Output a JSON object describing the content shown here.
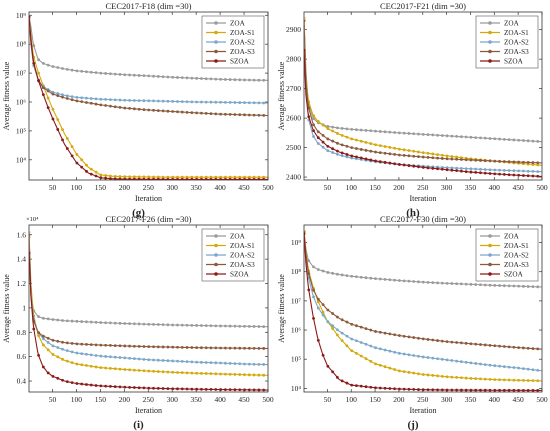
{
  "colors": {
    "ZOA": "#9a9a9a",
    "ZOA-S1": "#d4a90c",
    "ZOA-S2": "#7ca7c9",
    "ZOA-S3": "#8b5a3c",
    "SZOA": "#8b1a1a"
  },
  "chart_data": [
    {
      "type": "line",
      "title": "CEC2017-F18 (dim =30)",
      "xlabel": "Iteration",
      "ylabel": "Average fitness value",
      "panel_label": "(g)",
      "yscale": "log",
      "xlim": [
        1,
        500
      ],
      "ylim": [
        2000.0,
        1300000000.0
      ],
      "xticks": [
        50,
        100,
        150,
        200,
        250,
        300,
        350,
        400,
        450,
        500
      ],
      "yticks": [
        {
          "v": 10000.0,
          "label": "10⁴"
        },
        {
          "v": 100000.0,
          "label": "10⁵"
        },
        {
          "v": 1000000.0,
          "label": "10⁶"
        },
        {
          "v": 10000000.0,
          "label": "10⁷"
        },
        {
          "v": 100000000.0,
          "label": "10⁸"
        },
        {
          "v": 1000000000.0,
          "label": "10⁹"
        }
      ],
      "legend_position": "top-right",
      "grid": false,
      "series": [
        {
          "name": "ZOA",
          "x": [
            1,
            5,
            10,
            20,
            30,
            40,
            50,
            75,
            100,
            150,
            200,
            250,
            300,
            350,
            400,
            450,
            500
          ],
          "values": [
            1000000000.0,
            400000000.0,
            100000000.0,
            30000000.0,
            22000000.0,
            19000000.0,
            17000000.0,
            14000000.0,
            12000000.0,
            10000000.0,
            8800000.0,
            8000000.0,
            7200000.0,
            6600000.0,
            6100000.0,
            5800000.0,
            5600000.0
          ]
        },
        {
          "name": "ZOA-S1",
          "x": [
            1,
            5,
            10,
            20,
            30,
            40,
            50,
            75,
            100,
            125,
            150,
            175,
            200,
            250,
            300,
            400,
            500
          ],
          "values": [
            900000000.0,
            200000000.0,
            40000000.0,
            11000000.0,
            4000000.0,
            1500000.0,
            600000.0,
            80000.0,
            16000.0,
            5500.0,
            3000.0,
            2700.0,
            2600.0,
            2550.0,
            2500.0,
            2500.0,
            2500.0
          ]
        },
        {
          "name": "ZOA-S2",
          "x": [
            1,
            5,
            10,
            20,
            30,
            50,
            75,
            100,
            150,
            200,
            250,
            300,
            350,
            400,
            450,
            500
          ],
          "values": [
            800000000.0,
            100000000.0,
            20000000.0,
            6000000.0,
            3500000.0,
            2200000.0,
            1700000.0,
            1450000.0,
            1250000.0,
            1150000.0,
            1100000.0,
            1050000.0,
            1000000.0,
            980000.0,
            950000.0,
            920000.0
          ]
        },
        {
          "name": "ZOA-S3",
          "x": [
            1,
            5,
            10,
            20,
            30,
            50,
            75,
            100,
            150,
            200,
            250,
            300,
            350,
            400,
            450,
            500
          ],
          "values": [
            900000000.0,
            120000000.0,
            25000000.0,
            6000000.0,
            3200000.0,
            1900000.0,
            1400000.0,
            1100000.0,
            800000.0,
            620000.0,
            530000.0,
            470000.0,
            420000.0,
            380000.0,
            360000.0,
            340000.0
          ]
        },
        {
          "name": "SZOA",
          "x": [
            1,
            5,
            10,
            20,
            30,
            40,
            50,
            75,
            100,
            125,
            150,
            175,
            200,
            250,
            300,
            400,
            500
          ],
          "values": [
            900000000.0,
            150000000.0,
            25000000.0,
            6000000.0,
            2000000.0,
            700000.0,
            280000.0,
            35000.0,
            8000.0,
            3500.0,
            2400.0,
            2200.0,
            2150.0,
            2120.0,
            2100.0,
            2100.0,
            2100.0
          ]
        }
      ]
    },
    {
      "type": "line",
      "title": "CEC2017-F21 (dim =30)",
      "xlabel": "Iteration",
      "ylabel": "Average fitness value",
      "panel_label": "(h)",
      "yscale": "linear",
      "xlim": [
        1,
        500
      ],
      "ylim": [
        2390,
        2960
      ],
      "xticks": [
        50,
        100,
        150,
        200,
        250,
        300,
        350,
        400,
        450,
        500
      ],
      "yticks": [
        {
          "v": 2400,
          "label": "2400"
        },
        {
          "v": 2500,
          "label": "2500"
        },
        {
          "v": 2600,
          "label": "2600"
        },
        {
          "v": 2700,
          "label": "2700"
        },
        {
          "v": 2800,
          "label": "2800"
        },
        {
          "v": 2900,
          "label": "2900"
        }
      ],
      "legend_position": "top-right",
      "grid": false,
      "series": [
        {
          "name": "ZOA",
          "x": [
            1,
            5,
            10,
            20,
            30,
            50,
            75,
            100,
            150,
            200,
            250,
            300,
            350,
            400,
            450,
            500
          ],
          "values": [
            2940,
            2760,
            2650,
            2600,
            2585,
            2572,
            2566,
            2562,
            2556,
            2550,
            2545,
            2540,
            2535,
            2530,
            2525,
            2520
          ]
        },
        {
          "name": "ZOA-S1",
          "x": [
            1,
            5,
            10,
            20,
            30,
            50,
            75,
            100,
            150,
            200,
            250,
            300,
            350,
            400,
            450,
            500
          ],
          "values": [
            2935,
            2740,
            2660,
            2610,
            2590,
            2565,
            2545,
            2530,
            2510,
            2495,
            2483,
            2472,
            2462,
            2454,
            2447,
            2440
          ]
        },
        {
          "name": "ZOA-S2",
          "x": [
            1,
            5,
            10,
            20,
            30,
            50,
            75,
            100,
            150,
            200,
            250,
            300,
            350,
            400,
            450,
            500
          ],
          "values": [
            2930,
            2700,
            2600,
            2540,
            2515,
            2490,
            2475,
            2465,
            2452,
            2443,
            2437,
            2432,
            2428,
            2424,
            2421,
            2418
          ]
        },
        {
          "name": "ZOA-S3",
          "x": [
            1,
            5,
            10,
            20,
            30,
            50,
            75,
            100,
            150,
            200,
            250,
            300,
            350,
            400,
            450,
            500
          ],
          "values": [
            2930,
            2720,
            2640,
            2580,
            2555,
            2530,
            2512,
            2500,
            2485,
            2475,
            2468,
            2462,
            2458,
            2454,
            2451,
            2448
          ]
        },
        {
          "name": "SZOA",
          "x": [
            1,
            5,
            10,
            20,
            30,
            50,
            75,
            100,
            150,
            200,
            250,
            300,
            350,
            400,
            450,
            500
          ],
          "values": [
            2830,
            2680,
            2610,
            2560,
            2535,
            2505,
            2485,
            2472,
            2455,
            2443,
            2433,
            2425,
            2417,
            2411,
            2406,
            2402
          ]
        }
      ]
    },
    {
      "type": "line",
      "title": "CEC2017-F26 (dim =30)",
      "xlabel": "Iteration",
      "ylabel": "Average fitness value",
      "panel_label": "(i)",
      "yscale": "linear",
      "y_multiplier": "×10⁴",
      "xlim": [
        1,
        500
      ],
      "ylim": [
        0.31,
        1.68
      ],
      "xticks": [
        50,
        100,
        150,
        200,
        250,
        300,
        350,
        400,
        450,
        500
      ],
      "yticks": [
        {
          "v": 0.4,
          "label": "0.4"
        },
        {
          "v": 0.6,
          "label": "0.6"
        },
        {
          "v": 0.8,
          "label": "0.8"
        },
        {
          "v": 1.0,
          "label": "1"
        },
        {
          "v": 1.2,
          "label": "1.2"
        },
        {
          "v": 1.4,
          "label": "1.4"
        },
        {
          "v": 1.6,
          "label": "1.6"
        }
      ],
      "legend_position": "top-right",
      "grid": false,
      "series": [
        {
          "name": "ZOA",
          "x": [
            1,
            5,
            10,
            20,
            30,
            50,
            75,
            100,
            150,
            200,
            250,
            300,
            350,
            400,
            450,
            500
          ],
          "values": [
            1.62,
            1.15,
            0.98,
            0.93,
            0.915,
            0.905,
            0.895,
            0.89,
            0.88,
            0.872,
            0.866,
            0.86,
            0.856,
            0.852,
            0.849,
            0.846
          ]
        },
        {
          "name": "ZOA-S1",
          "x": [
            1,
            5,
            10,
            20,
            30,
            50,
            75,
            100,
            150,
            200,
            250,
            300,
            350,
            400,
            450,
            500
          ],
          "values": [
            1.6,
            1.2,
            0.95,
            0.78,
            0.7,
            0.62,
            0.57,
            0.54,
            0.51,
            0.495,
            0.482,
            0.472,
            0.464,
            0.458,
            0.452,
            0.447
          ]
        },
        {
          "name": "ZOA-S2",
          "x": [
            1,
            5,
            10,
            20,
            30,
            50,
            75,
            100,
            150,
            200,
            250,
            300,
            350,
            400,
            450,
            500
          ],
          "values": [
            1.58,
            1.12,
            0.92,
            0.8,
            0.75,
            0.69,
            0.655,
            0.63,
            0.605,
            0.59,
            0.575,
            0.565,
            0.555,
            0.548,
            0.54,
            0.535
          ]
        },
        {
          "name": "ZOA-S3",
          "x": [
            1,
            5,
            10,
            20,
            30,
            50,
            75,
            100,
            150,
            200,
            250,
            300,
            350,
            400,
            450,
            500
          ],
          "values": [
            1.6,
            1.1,
            0.9,
            0.8,
            0.77,
            0.735,
            0.715,
            0.705,
            0.695,
            0.688,
            0.682,
            0.678,
            0.674,
            0.671,
            0.669,
            0.667
          ]
        },
        {
          "name": "SZOA",
          "x": [
            1,
            5,
            10,
            20,
            30,
            40,
            50,
            75,
            100,
            150,
            200,
            250,
            300,
            350,
            400,
            450,
            500
          ],
          "values": [
            1.45,
            1.1,
            0.85,
            0.62,
            0.52,
            0.47,
            0.44,
            0.4,
            0.38,
            0.36,
            0.35,
            0.342,
            0.337,
            0.333,
            0.33,
            0.328,
            0.326
          ]
        }
      ]
    },
    {
      "type": "line",
      "title": "CEC2017-F30 (dim =30)",
      "xlabel": "Iteration",
      "ylabel": "Average fitness value",
      "panel_label": "(j)",
      "yscale": "log",
      "xlim": [
        1,
        500
      ],
      "ylim": [
        7500.0,
        4000000000.0
      ],
      "xticks": [
        50,
        100,
        150,
        200,
        250,
        300,
        350,
        400,
        450,
        500
      ],
      "yticks": [
        {
          "v": 10000.0,
          "label": "10⁴"
        },
        {
          "v": 100000.0,
          "label": "10⁵"
        },
        {
          "v": 1000000.0,
          "label": "10⁶"
        },
        {
          "v": 10000000.0,
          "label": "10⁷"
        },
        {
          "v": 100000000.0,
          "label": "10⁸"
        },
        {
          "v": 1000000000.0,
          "label": "10⁹"
        }
      ],
      "legend_position": "top-right",
      "grid": false,
      "series": [
        {
          "name": "ZOA",
          "x": [
            1,
            5,
            10,
            20,
            30,
            50,
            75,
            100,
            150,
            200,
            250,
            300,
            350,
            400,
            450,
            500
          ],
          "values": [
            2500000000.0,
            600000000.0,
            250000000.0,
            150000000.0,
            120000000.0,
            95000000.0,
            80000000.0,
            70000000.0,
            58000000.0,
            50000000.0,
            44000000.0,
            40000000.0,
            37000000.0,
            34000000.0,
            32000000.0,
            30000000.0
          ]
        },
        {
          "name": "ZOA-S1",
          "x": [
            1,
            5,
            10,
            20,
            30,
            50,
            75,
            100,
            150,
            200,
            250,
            300,
            350,
            400,
            450,
            500
          ],
          "values": [
            2500000000.0,
            500000000.0,
            120000000.0,
            30000000.0,
            10000000.0,
            2000000.0,
            550000.0,
            200000.0,
            70000.0,
            40000.0,
            30000.0,
            25000.0,
            22000.0,
            20000.0,
            19000.0,
            18000.0
          ]
        },
        {
          "name": "ZOA-S2",
          "x": [
            1,
            5,
            10,
            20,
            30,
            50,
            75,
            100,
            150,
            200,
            250,
            300,
            350,
            400,
            450,
            500
          ],
          "values": [
            2200000000.0,
            300000000.0,
            70000000.0,
            15000000.0,
            6000000.0,
            2000000.0,
            900000.0,
            500000.0,
            250000.0,
            160000.0,
            120000.0,
            95000.0,
            75000.0,
            60000.0,
            50000.0,
            40000.0
          ]
        },
        {
          "name": "ZOA-S3",
          "x": [
            1,
            5,
            10,
            20,
            30,
            50,
            75,
            100,
            150,
            200,
            250,
            300,
            350,
            400,
            450,
            500
          ],
          "values": [
            2300000000.0,
            400000000.0,
            100000000.0,
            25000000.0,
            12000000.0,
            5000000.0,
            2500000.0,
            1600000.0,
            900000.0,
            650000.0,
            500000.0,
            400000.0,
            340000.0,
            290000.0,
            250000.0,
            220000.0
          ]
        },
        {
          "name": "SZOA",
          "x": [
            1,
            5,
            10,
            20,
            30,
            40,
            50,
            75,
            100,
            150,
            200,
            250,
            300,
            400,
            500
          ],
          "values": [
            2000000000.0,
            200000000.0,
            30000000.0,
            3000000.0,
            500000.0,
            150000.0,
            60000.0,
            20000.0,
            13000.0,
            10500.0,
            9500.0,
            9000.0,
            8800.0,
            8600.0,
            8500.0
          ]
        }
      ]
    }
  ]
}
